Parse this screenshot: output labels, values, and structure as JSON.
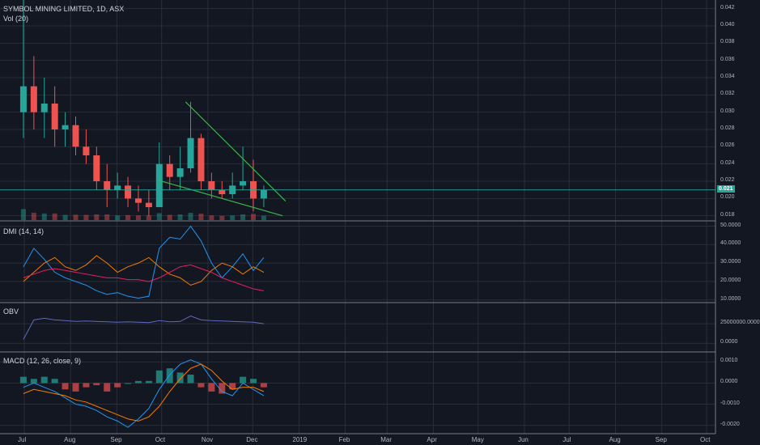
{
  "header": {
    "title": "SYMBOL MINING LIMITED, 1D, ASX",
    "vol_label": "Vol (20)"
  },
  "colors": {
    "background": "#131722",
    "grid": "#2a2e39",
    "up": "#26a69a",
    "down": "#ef5350",
    "trendline": "#3bb54a",
    "plus_di": "#2196f3",
    "minus_di": "#f57c00",
    "adx": "#e91e63",
    "obv": "#5c6bc0",
    "macd": "#2196f3",
    "signal": "#f57c00"
  },
  "x_axis": {
    "ticks": [
      "Jul",
      "Aug",
      "Sep",
      "Oct",
      "Nov",
      "Dec",
      "2019",
      "Feb",
      "Mar",
      "Apr",
      "May",
      "Jun",
      "Jul",
      "Aug",
      "Sep",
      "Oct"
    ]
  },
  "chart_data": [
    {
      "type": "candlestick",
      "title": "SYMBOL MINING LIMITED, 1D, ASX",
      "ylim": [
        0.0175,
        0.043
      ],
      "y_ticks": [
        "0.042",
        "0.040",
        "0.038",
        "0.036",
        "0.034",
        "0.032",
        "0.030",
        "0.028",
        "0.026",
        "0.024",
        "0.022",
        "0.020",
        "0.018"
      ],
      "last_price": "0.021",
      "last_price_value": 0.021,
      "trendlines": [
        {
          "from": [
            "2018-10-17",
            0.0312
          ],
          "to": [
            "2018-12-23",
            0.0197
          ]
        },
        {
          "from": [
            "2018-09-29",
            0.0221
          ],
          "to": [
            "2018-12-21",
            0.018
          ]
        }
      ],
      "candles_weekly_approx": [
        {
          "week": "2018-06-25",
          "open": 0.03,
          "high": 0.043,
          "low": 0.027,
          "close": 0.033
        },
        {
          "week": "2018-07-02",
          "open": 0.033,
          "high": 0.0365,
          "low": 0.028,
          "close": 0.03
        },
        {
          "week": "2018-07-09",
          "open": 0.03,
          "high": 0.034,
          "low": 0.027,
          "close": 0.031
        },
        {
          "week": "2018-07-16",
          "open": 0.031,
          "high": 0.033,
          "low": 0.026,
          "close": 0.028
        },
        {
          "week": "2018-07-23",
          "open": 0.028,
          "high": 0.03,
          "low": 0.026,
          "close": 0.0285
        },
        {
          "week": "2018-07-30",
          "open": 0.0285,
          "high": 0.0295,
          "low": 0.025,
          "close": 0.026
        },
        {
          "week": "2018-08-06",
          "open": 0.026,
          "high": 0.028,
          "low": 0.024,
          "close": 0.025
        },
        {
          "week": "2018-08-13",
          "open": 0.025,
          "high": 0.026,
          "low": 0.021,
          "close": 0.022
        },
        {
          "week": "2018-08-20",
          "open": 0.022,
          "high": 0.024,
          "low": 0.019,
          "close": 0.021
        },
        {
          "week": "2018-08-27",
          "open": 0.021,
          "high": 0.023,
          "low": 0.02,
          "close": 0.0215
        },
        {
          "week": "2018-09-03",
          "open": 0.0215,
          "high": 0.0225,
          "low": 0.019,
          "close": 0.02
        },
        {
          "week": "2018-09-10",
          "open": 0.02,
          "high": 0.0215,
          "low": 0.0185,
          "close": 0.0195
        },
        {
          "week": "2018-09-17",
          "open": 0.0195,
          "high": 0.021,
          "low": 0.018,
          "close": 0.019
        },
        {
          "week": "2018-09-24",
          "open": 0.019,
          "high": 0.0265,
          "low": 0.019,
          "close": 0.024
        },
        {
          "week": "2018-10-01",
          "open": 0.024,
          "high": 0.025,
          "low": 0.021,
          "close": 0.0225
        },
        {
          "week": "2018-10-08",
          "open": 0.0225,
          "high": 0.026,
          "low": 0.021,
          "close": 0.0235
        },
        {
          "week": "2018-10-15",
          "open": 0.0235,
          "high": 0.0312,
          "low": 0.023,
          "close": 0.027
        },
        {
          "week": "2018-10-22",
          "open": 0.027,
          "high": 0.0275,
          "low": 0.021,
          "close": 0.022
        },
        {
          "week": "2018-10-29",
          "open": 0.022,
          "high": 0.023,
          "low": 0.02,
          "close": 0.021
        },
        {
          "week": "2018-11-05",
          "open": 0.021,
          "high": 0.022,
          "low": 0.02,
          "close": 0.0205
        },
        {
          "week": "2018-11-12",
          "open": 0.0205,
          "high": 0.023,
          "low": 0.02,
          "close": 0.0215
        },
        {
          "week": "2018-11-19",
          "open": 0.0215,
          "high": 0.026,
          "low": 0.021,
          "close": 0.022
        },
        {
          "week": "2018-11-26",
          "open": 0.022,
          "high": 0.0245,
          "low": 0.0185,
          "close": 0.02
        },
        {
          "week": "2018-12-03",
          "open": 0.02,
          "high": 0.0215,
          "low": 0.019,
          "close": 0.021
        }
      ]
    },
    {
      "type": "line",
      "title": "DMI (14, 14)",
      "ylim": [
        9.0,
        52.0
      ],
      "y_ticks": [
        "50.0000",
        "40.0000",
        "30.0000",
        "20.0000",
        "10.0000"
      ],
      "x": [
        "2018-06-25",
        "2018-07-02",
        "2018-07-09",
        "2018-07-16",
        "2018-07-23",
        "2018-07-30",
        "2018-08-06",
        "2018-08-13",
        "2018-08-20",
        "2018-08-27",
        "2018-09-03",
        "2018-09-10",
        "2018-09-17",
        "2018-09-24",
        "2018-10-01",
        "2018-10-08",
        "2018-10-15",
        "2018-10-22",
        "2018-10-29",
        "2018-11-05",
        "2018-11-12",
        "2018-11-19",
        "2018-11-26",
        "2018-12-03"
      ],
      "series": [
        {
          "values": [
            28,
            38,
            32,
            25,
            22,
            20,
            18,
            15,
            13,
            14,
            12,
            11,
            12,
            38,
            44,
            43,
            50,
            42,
            30,
            22,
            28,
            35,
            26,
            33
          ]
        },
        {
          "values": [
            20,
            25,
            30,
            33,
            28,
            26,
            29,
            34,
            30,
            25,
            28,
            30,
            33,
            28,
            24,
            22,
            18,
            20,
            26,
            30,
            28,
            24,
            28,
            25
          ]
        },
        {
          "values": [
            22,
            24,
            26,
            27,
            26,
            25,
            24,
            23,
            22,
            22,
            21,
            21,
            20,
            22,
            25,
            28,
            29,
            27,
            25,
            22,
            20,
            18,
            16,
            15
          ]
        }
      ]
    },
    {
      "type": "line",
      "title": "OBV",
      "ylim": [
        -10000000,
        50000000
      ],
      "y_ticks": [
        "25000000.0000",
        "0.0000"
      ],
      "x": [
        "2018-06-25",
        "2018-07-02",
        "2018-07-09",
        "2018-07-16",
        "2018-07-23",
        "2018-07-30",
        "2018-08-06",
        "2018-08-13",
        "2018-08-20",
        "2018-08-27",
        "2018-09-03",
        "2018-09-10",
        "2018-09-17",
        "2018-09-24",
        "2018-10-01",
        "2018-10-08",
        "2018-10-15",
        "2018-10-22",
        "2018-10-29",
        "2018-11-05",
        "2018-11-12",
        "2018-11-19",
        "2018-11-26",
        "2018-12-03"
      ],
      "series": [
        {
          "values": [
            5000000,
            30000000,
            32000000,
            30000000,
            29000000,
            28000000,
            28500000,
            28000000,
            27500000,
            27000000,
            27500000,
            27000000,
            26500000,
            29000000,
            27500000,
            28000000,
            35000000,
            30000000,
            29000000,
            28500000,
            28000000,
            27500000,
            27000000,
            25000000
          ]
        }
      ]
    },
    {
      "type": "bar",
      "title": "MACD (12, 26, close, 9)",
      "ylim": [
        -0.0024,
        0.0014
      ],
      "y_ticks": [
        "0.0010",
        "0.0000",
        "-0.0010",
        "-0.0020"
      ],
      "x": [
        "2018-06-25",
        "2018-07-02",
        "2018-07-09",
        "2018-07-16",
        "2018-07-23",
        "2018-07-30",
        "2018-08-06",
        "2018-08-13",
        "2018-08-20",
        "2018-08-27",
        "2018-09-03",
        "2018-09-10",
        "2018-09-17",
        "2018-09-24",
        "2018-10-01",
        "2018-10-08",
        "2018-10-15",
        "2018-10-22",
        "2018-10-29",
        "2018-11-05",
        "2018-11-12",
        "2018-11-19",
        "2018-11-26",
        "2018-12-03"
      ],
      "histogram": [
        0.0003,
        0.0002,
        0.0003,
        0.0002,
        -0.0003,
        -0.0004,
        -0.0002,
        -0.0001,
        -0.0004,
        -0.0002,
        0.0,
        0.0001,
        0.0001,
        0.0006,
        0.0007,
        0.0005,
        0.0004,
        -0.0002,
        -0.0004,
        -0.0005,
        -0.0003,
        0.0003,
        0.0002,
        -0.0002
      ],
      "series": [
        {
          "values": [
            -0.0002,
            0.0,
            -0.0002,
            -0.0004,
            -0.0007,
            -0.001,
            -0.0011,
            -0.0013,
            -0.0016,
            -0.0018,
            -0.0021,
            -0.0017,
            -0.0012,
            -0.0003,
            0.0004,
            0.0009,
            0.0011,
            0.0009,
            0.0002,
            -0.0004,
            -0.0006,
            0.0,
            -0.0003,
            -0.0006
          ]
        },
        {
          "values": [
            -0.0005,
            -0.0003,
            -0.0004,
            -0.0005,
            -0.0006,
            -0.0008,
            -0.0009,
            -0.0011,
            -0.0013,
            -0.0015,
            -0.0017,
            -0.0018,
            -0.0016,
            -0.0011,
            -0.0004,
            0.0002,
            0.0007,
            0.0009,
            0.0006,
            0.0001,
            -0.0003,
            -0.0002,
            -0.0002,
            -0.0004
          ]
        }
      ]
    }
  ]
}
